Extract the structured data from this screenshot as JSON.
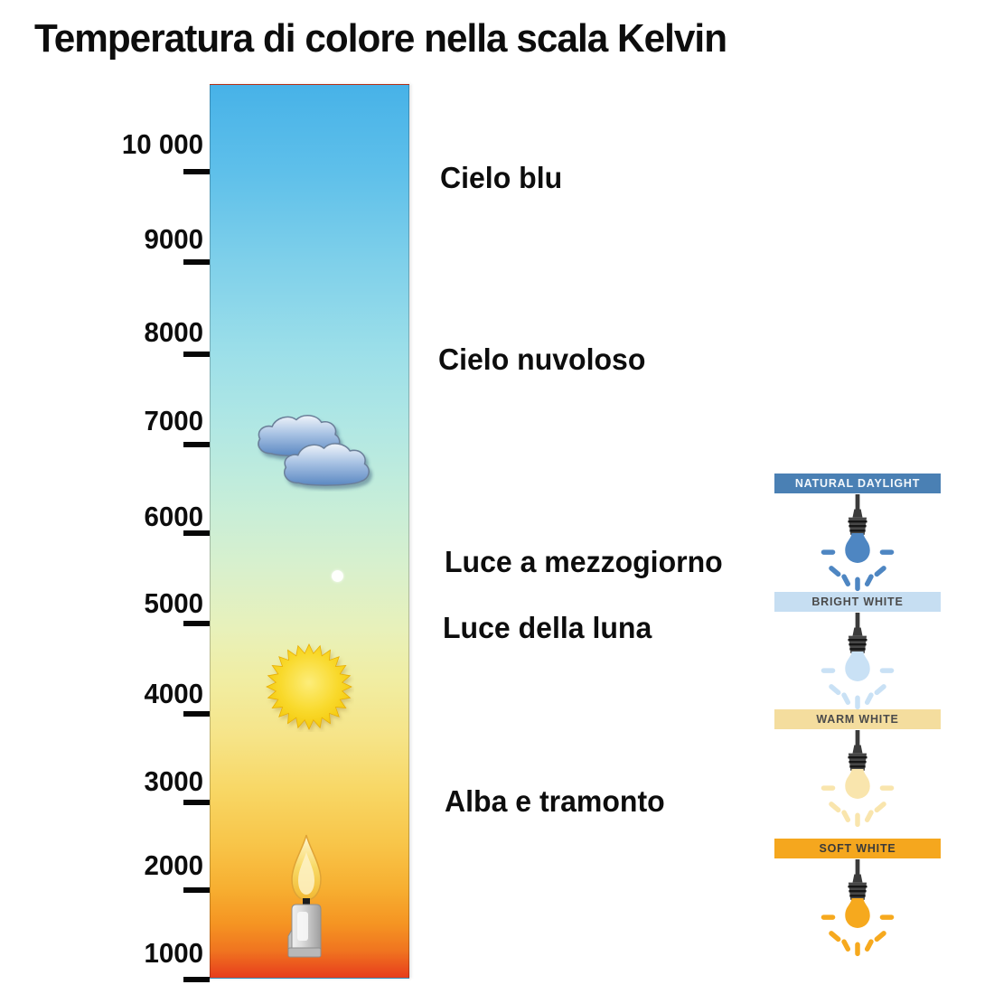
{
  "title": "Temperatura di colore nella scala Kelvin",
  "kelvin_scale": {
    "unit": "K",
    "items": [
      {
        "value": 10000,
        "label": "10 000"
      },
      {
        "value": 9000,
        "label": "9000"
      },
      {
        "value": 8000,
        "label": "8000"
      },
      {
        "value": 7000,
        "label": "7000"
      },
      {
        "value": 6000,
        "label": "6000"
      },
      {
        "value": 5000,
        "label": "5000"
      },
      {
        "value": 4000,
        "label": "4000"
      },
      {
        "value": 3000,
        "label": "3000"
      },
      {
        "value": 2000,
        "label": "2000"
      },
      {
        "value": 1000,
        "label": "1000"
      }
    ]
  },
  "annotations": [
    {
      "label": "Cielo blu"
    },
    {
      "label": "Cielo nuvoloso"
    },
    {
      "label": "Luce a mezzogiorno"
    },
    {
      "label": "Luce della luna"
    },
    {
      "label": "Alba e tramonto"
    }
  ],
  "icons": {
    "clouds": "cloudy-sky-icon",
    "moon": "small-moon-dot-icon",
    "sun": "sun-icon",
    "candle": "candle-flame-icon",
    "bulb": "hanging-light-bulb-icon"
  },
  "bulb_panel": {
    "items": [
      {
        "label": "NATURAL DAYLIGHT",
        "banner_color": "#4a80b4",
        "bulb_color": "#4e86c2",
        "label_color": "#f2f7fb"
      },
      {
        "label": "BRIGHT WHITE",
        "banner_color": "#c6def2",
        "bulb_color": "#c9e1f5",
        "label_color": "#4b4b4b"
      },
      {
        "label": "WARM WHITE",
        "banner_color": "#f4dd9e",
        "bulb_color": "#f9e5ad",
        "label_color": "#4b4b4b"
      },
      {
        "label": "SOFT WHITE",
        "banner_color": "#f5a71e",
        "bulb_color": "#f6a91e",
        "label_color": "#3a3a3a"
      }
    ]
  },
  "colors": {
    "gradient_top": "#47b2e8",
    "gradient_bottom": "#e73d1c",
    "text": "#0d0d0d"
  },
  "chart_data": {
    "type": "table",
    "title": "Temperatura di colore nella scala Kelvin",
    "axis": {
      "unit": "K",
      "min": 1000,
      "max": 10000,
      "tick_step": 1000,
      "tick_labels": [
        "10 000",
        "9000",
        "8000",
        "7000",
        "6000",
        "5000",
        "4000",
        "3000",
        "2000",
        "1000"
      ]
    },
    "annotations": [
      {
        "label": "Cielo blu",
        "approx_kelvin": 9600
      },
      {
        "label": "Cielo nuvoloso",
        "approx_kelvin": 7600
      },
      {
        "label": "Luce a mezzogiorno",
        "approx_kelvin": 5400
      },
      {
        "label": "Luce della luna",
        "approx_kelvin": 4650
      },
      {
        "label": "Alba e tramonto",
        "approx_kelvin": 2700
      }
    ],
    "icon_markers": [
      {
        "icon": "clouds",
        "approx_kelvin": 6800
      },
      {
        "icon": "moon-dot",
        "approx_kelvin": 5200
      },
      {
        "icon": "sun",
        "approx_kelvin": 4100
      },
      {
        "icon": "candle",
        "approx_kelvin": 1500
      }
    ],
    "bulb_categories": [
      "NATURAL DAYLIGHT",
      "BRIGHT WHITE",
      "WARM WHITE",
      "SOFT WHITE"
    ]
  }
}
